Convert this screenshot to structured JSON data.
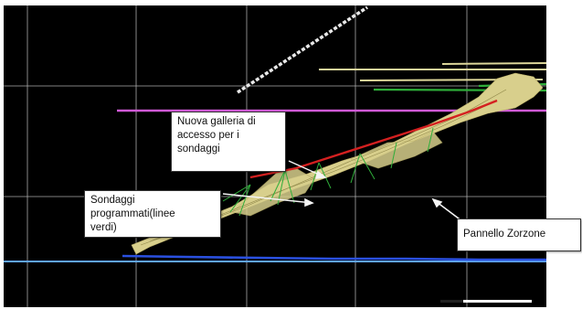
{
  "callouts": {
    "galleria": "Nuova galleria di\naccesso per i\nsondaggi",
    "sondaggi": "Sondaggi\nprogrammati(linee\nverdi)",
    "pannello": "Pannello Zorzone"
  },
  "colors": {
    "background": "#000000",
    "gallery_line": "#d42020",
    "drillholes": "#2fae3a",
    "panel_body": "#d8cf8c",
    "level_line": "#d05ad6",
    "water_line": "#2a50e0",
    "upper_tunnel": "#ddd79a"
  }
}
